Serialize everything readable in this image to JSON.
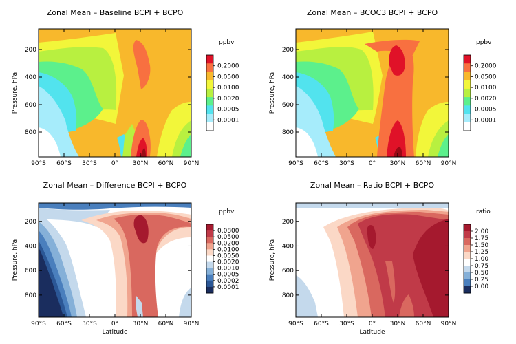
{
  "chart_data": [
    {
      "type": "contour",
      "title": "Zonal Mean – Baseline BCPI + BCPO",
      "ylabel": "Pressure, hPa",
      "xlabel": "",
      "xlim": [
        -90,
        90
      ],
      "ylim": [
        980,
        50
      ],
      "x_ticks": [
        "90°S",
        "60°S",
        "30°S",
        "0°",
        "30°N",
        "60°N",
        "90°N"
      ],
      "y_ticks": [
        "200",
        "400",
        "600",
        "800"
      ],
      "legend_unit": "ppbv",
      "legend_labels": [
        "0.2000",
        "0.0500",
        "0.0100",
        "0.0020",
        "0.0005",
        "0.0001"
      ],
      "levels": [
        0.0001,
        0.0005,
        0.002,
        0.01,
        0.05,
        0.2
      ],
      "colors": [
        "#ffffff",
        "#a6ecfb",
        "#52e3ee",
        "#5cf08c",
        "#b8f040",
        "#f2f63a",
        "#f8b82c",
        "#f87040",
        "#e01228"
      ]
    },
    {
      "type": "contour",
      "title": "Zonal Mean – BCOC3 BCPI + BCPO",
      "ylabel": "Pressure, hPa",
      "xlabel": "",
      "xlim": [
        -90,
        90
      ],
      "ylim": [
        980,
        50
      ],
      "x_ticks": [
        "90°S",
        "60°S",
        "30°S",
        "0°",
        "30°N",
        "60°N",
        "90°N"
      ],
      "y_ticks": [
        "200",
        "400",
        "600",
        "800"
      ],
      "legend_unit": "ppbv",
      "legend_labels": [
        "0.2000",
        "0.0500",
        "0.0100",
        "0.0020",
        "0.0005",
        "0.0001"
      ],
      "levels": [
        0.0001,
        0.0005,
        0.002,
        0.01,
        0.05,
        0.2
      ],
      "colors": [
        "#ffffff",
        "#a6ecfb",
        "#52e3ee",
        "#5cf08c",
        "#b8f040",
        "#f2f63a",
        "#f8b82c",
        "#f87040",
        "#e01228"
      ]
    },
    {
      "type": "contour",
      "title": "Zonal Mean – Difference BCPI + BCPO",
      "ylabel": "Pressure, hPa",
      "xlabel": "Latitude",
      "xlim": [
        -90,
        90
      ],
      "ylim": [
        980,
        50
      ],
      "x_ticks": [
        "90°S",
        "60°S",
        "30°S",
        "0°",
        "30°N",
        "60°N",
        "90°N"
      ],
      "y_ticks": [
        "200",
        "400",
        "600",
        "800"
      ],
      "legend_unit": "ppbv",
      "legend_labels": [
        "0.0800",
        "0.0500",
        "0.0200",
        "0.0100",
        "0.0050",
        "0.0020",
        "0.0010",
        "0.0005",
        "0.0002",
        "0.0001"
      ],
      "colors": [
        "#1a2d5e",
        "#2b5796",
        "#4a7fbd",
        "#85b0d8",
        "#c4d9ec",
        "#ffffff",
        "#fbd8c6",
        "#f0a48e",
        "#d9685f",
        "#c03a48",
        "#a5192e"
      ]
    },
    {
      "type": "contour",
      "title": "Zonal Mean – Ratio BCPI + BCPO",
      "ylabel": "Pressure, hPa",
      "xlabel": "Latitude",
      "xlim": [
        -90,
        90
      ],
      "ylim": [
        980,
        50
      ],
      "x_ticks": [
        "90°S",
        "60°S",
        "30°S",
        "0°",
        "30°N",
        "60°N",
        "90°N"
      ],
      "y_ticks": [
        "200",
        "400",
        "600",
        "800"
      ],
      "legend_unit": "ratio",
      "legend_labels": [
        "2.00",
        "1.75",
        "1.50",
        "1.25",
        "1.00",
        "0.75",
        "0.50",
        "0.25",
        "0.00"
      ],
      "colors": [
        "#1a2d5e",
        "#4a7fbd",
        "#85b0d8",
        "#c4d9ec",
        "#ffffff",
        "#fbd8c6",
        "#f0a48e",
        "#d9685f",
        "#c03a48",
        "#a5192e"
      ]
    }
  ]
}
